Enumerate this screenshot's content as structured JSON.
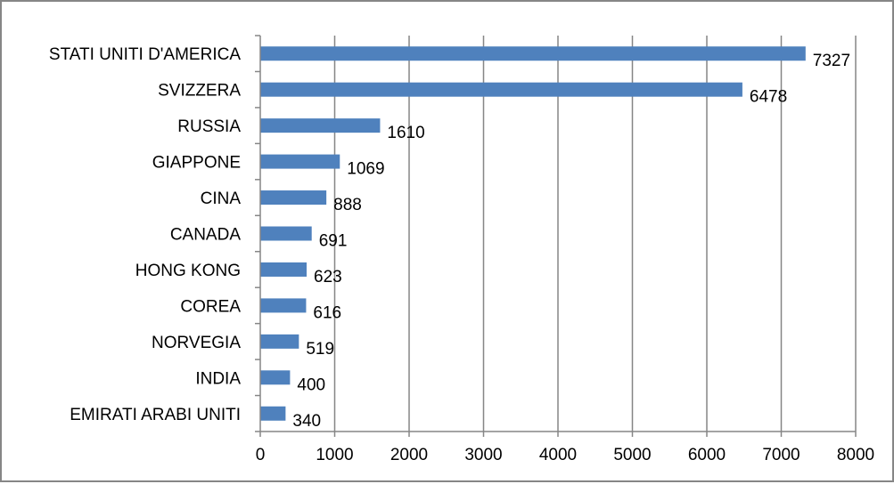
{
  "chart_data": {
    "type": "bar",
    "orientation": "horizontal",
    "categories": [
      "STATI UNITI D'AMERICA",
      "SVIZZERA",
      "RUSSIA",
      "GIAPPONE",
      "CINA",
      "CANADA",
      "HONG KONG",
      "COREA",
      "NORVEGIA",
      "INDIA",
      "EMIRATI ARABI UNITI"
    ],
    "values": [
      7327,
      6478,
      1610,
      1069,
      888,
      691,
      623,
      616,
      519,
      400,
      340
    ],
    "xlim": [
      0,
      8000
    ],
    "xticks": [
      0,
      1000,
      2000,
      3000,
      4000,
      5000,
      6000,
      7000,
      8000
    ],
    "grid": "vertical",
    "legend": "none",
    "bar_color": "#4F81BD",
    "grid_color": "#868686"
  }
}
